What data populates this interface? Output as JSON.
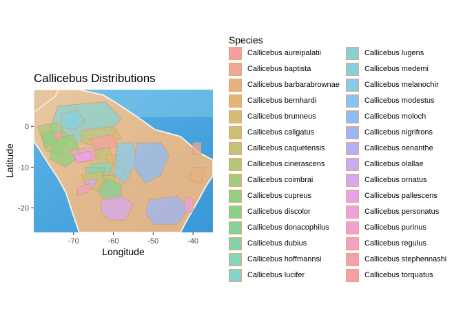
{
  "chart_data": {
    "type": "map",
    "title": "Callicebus Distributions",
    "xlabel": "Longitude",
    "ylabel": "Latitude",
    "xlim": [
      -80,
      -35
    ],
    "ylim": [
      -26,
      9
    ],
    "x_ticks": [
      -70,
      -60,
      -50,
      -40
    ],
    "y_ticks": [
      0,
      -10,
      -20
    ],
    "x_tick_labels": [
      "-70",
      "-60",
      "-50",
      "-40"
    ],
    "y_tick_labels": [
      "0",
      "-10",
      "-20"
    ],
    "legend_title": "Species",
    "legend_position": "right",
    "basemap": "watercolor",
    "series": [
      {
        "name": "Callicebus aureipalatii",
        "color": "#f4a0a0"
      },
      {
        "name": "Callicebus baptista",
        "color": "#efa893"
      },
      {
        "name": "Callicebus barbarabrownae",
        "color": "#e9b07f"
      },
      {
        "name": "Callicebus bernhardi",
        "color": "#e0b674"
      },
      {
        "name": "Callicebus brunneus",
        "color": "#d7bb73"
      },
      {
        "name": "Callicebus caligatus",
        "color": "#cdbf74"
      },
      {
        "name": "Callicebus caquetensis",
        "color": "#c2c378"
      },
      {
        "name": "Callicebus cinerascens",
        "color": "#b4c77a"
      },
      {
        "name": "Callicebus coimbrai",
        "color": "#a5cb7c"
      },
      {
        "name": "Callicebus cupreus",
        "color": "#93cf80"
      },
      {
        "name": "Callicebus discolor",
        "color": "#88d287"
      },
      {
        "name": "Callicebus donacophilus",
        "color": "#84d294"
      },
      {
        "name": "Callicebus dubius",
        "color": "#84d4a8"
      },
      {
        "name": "Callicebus hoffmannsi",
        "color": "#84d5ba"
      },
      {
        "name": "Callicebus lucifer",
        "color": "#85d4c8"
      },
      {
        "name": "Callicebus lugens",
        "color": "#85d3d0"
      },
      {
        "name": "Callicebus medemi",
        "color": "#84d1dd"
      },
      {
        "name": "Callicebus melanochir",
        "color": "#85cceb"
      },
      {
        "name": "Callicebus modestus",
        "color": "#86c5f2"
      },
      {
        "name": "Callicebus moloch",
        "color": "#8bbdf5"
      },
      {
        "name": "Callicebus nigrifrons",
        "color": "#9cb6f5"
      },
      {
        "name": "Callicebus oenanthe",
        "color": "#b3b1f5"
      },
      {
        "name": "Callicebus olallae",
        "color": "#c7adf1"
      },
      {
        "name": "Callicebus ornatus",
        "color": "#d6a8ee"
      },
      {
        "name": "Callicebus pallescens",
        "color": "#e5a3ea"
      },
      {
        "name": "Callicebus personatus",
        "color": "#eda1e0"
      },
      {
        "name": "Callicebus purinus",
        "color": "#f3a0d1"
      },
      {
        "name": "Callicebus regulus",
        "color": "#f6a0c2"
      },
      {
        "name": "Callicebus stephennashi",
        "color": "#f5a0b2"
      },
      {
        "name": "Callicebus torquatus",
        "color": "#f5a0a5"
      }
    ]
  }
}
